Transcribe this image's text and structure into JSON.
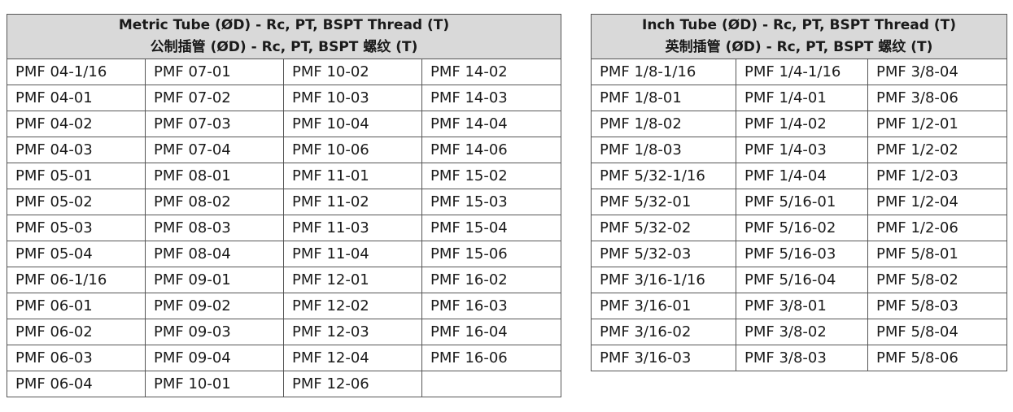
{
  "metric": {
    "title_en": "Metric Tube (ØD) - Rc, PT, BSPT Thread (T)",
    "title_cn": "公制插管 (ØD) - Rc, PT, BSPT 螺纹 (T)",
    "rows": [
      [
        "PMF 04-1/16",
        "PMF 07-01",
        "PMF 10-02",
        "PMF 14-02"
      ],
      [
        "PMF 04-01",
        "PMF 07-02",
        "PMF 10-03",
        "PMF 14-03"
      ],
      [
        "PMF 04-02",
        "PMF 07-03",
        "PMF 10-04",
        "PMF 14-04"
      ],
      [
        "PMF 04-03",
        "PMF 07-04",
        "PMF 10-06",
        "PMF 14-06"
      ],
      [
        "PMF 05-01",
        "PMF 08-01",
        "PMF 11-01",
        "PMF 15-02"
      ],
      [
        "PMF 05-02",
        "PMF 08-02",
        "PMF 11-02",
        "PMF 15-03"
      ],
      [
        "PMF 05-03",
        "PMF 08-03",
        "PMF 11-03",
        "PMF 15-04"
      ],
      [
        "PMF 05-04",
        "PMF 08-04",
        "PMF 11-04",
        "PMF 15-06"
      ],
      [
        "PMF 06-1/16",
        "PMF 09-01",
        "PMF 12-01",
        "PMF 16-02"
      ],
      [
        "PMF 06-01",
        "PMF 09-02",
        "PMF 12-02",
        "PMF 16-03"
      ],
      [
        "PMF 06-02",
        "PMF 09-03",
        "PMF 12-03",
        "PMF 16-04"
      ],
      [
        "PMF 06-03",
        "PMF 09-04",
        "PMF 12-04",
        "PMF 16-06"
      ],
      [
        "PMF 06-04",
        "PMF 10-01",
        "PMF 12-06",
        ""
      ]
    ]
  },
  "inch": {
    "title_en": "Inch Tube (ØD) - Rc, PT, BSPT Thread (T)",
    "title_cn": "英制插管 (ØD) - Rc, PT, BSPT 螺纹 (T)",
    "rows": [
      [
        "PMF 1/8-1/16",
        "PMF 1/4-1/16",
        "PMF 3/8-04"
      ],
      [
        "PMF 1/8-01",
        "PMF 1/4-01",
        "PMF 3/8-06"
      ],
      [
        "PMF 1/8-02",
        "PMF 1/4-02",
        "PMF 1/2-01"
      ],
      [
        "PMF 1/8-03",
        "PMF 1/4-03",
        "PMF 1/2-02"
      ],
      [
        "PMF 5/32-1/16",
        "PMF 1/4-04",
        "PMF 1/2-03"
      ],
      [
        "PMF 5/32-01",
        "PMF 5/16-01",
        "PMF 1/2-04"
      ],
      [
        "PMF 5/32-02",
        "PMF 5/16-02",
        "PMF 1/2-06"
      ],
      [
        "PMF 5/32-03",
        "PMF 5/16-03",
        "PMF 5/8-01"
      ],
      [
        "PMF 3/16-1/16",
        "PMF 5/16-04",
        "PMF 5/8-02"
      ],
      [
        "PMF 3/16-01",
        "PMF 3/8-01",
        "PMF 5/8-03"
      ],
      [
        "PMF 3/16-02",
        "PMF 3/8-02",
        "PMF 5/8-04"
      ],
      [
        "PMF 3/16-03",
        "PMF 3/8-03",
        "PMF 5/8-06"
      ]
    ]
  }
}
